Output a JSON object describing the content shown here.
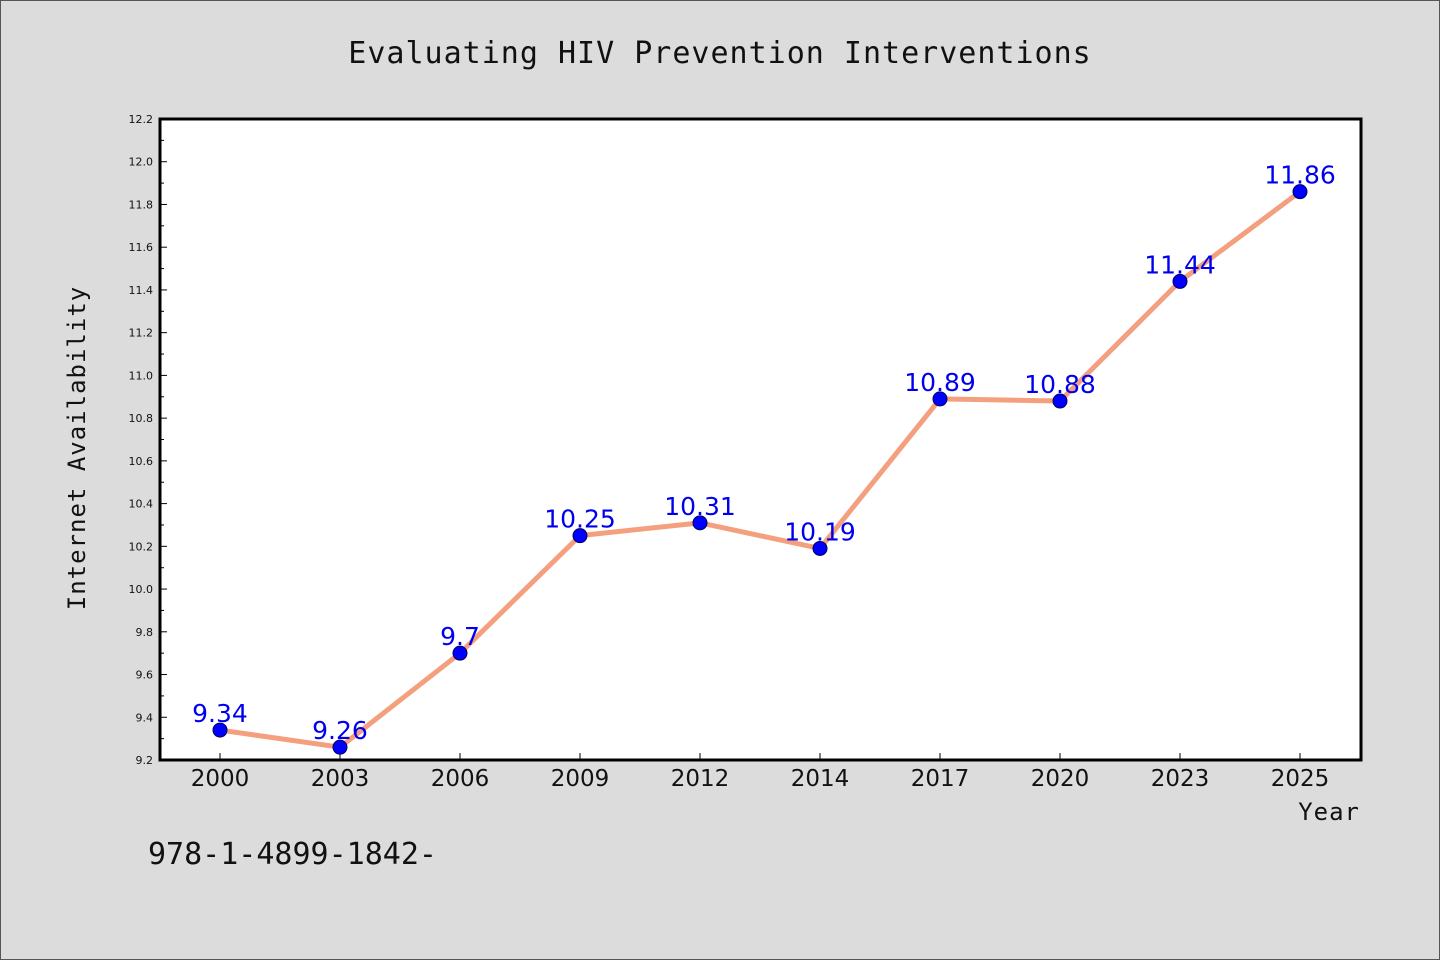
{
  "chart_data": {
    "type": "line",
    "title": "Evaluating HIV Prevention Interventions",
    "xlabel": "Year",
    "ylabel": "Internet Availability",
    "categories": [
      "2000",
      "2003",
      "2006",
      "2009",
      "2012",
      "2014",
      "2017",
      "2020",
      "2023",
      "2025"
    ],
    "series": [
      {
        "values": [
          9.34,
          9.26,
          9.7,
          10.25,
          10.31,
          10.19,
          10.89,
          10.88,
          11.44,
          11.86
        ],
        "labels": [
          "9.34",
          "9.26",
          "9.7",
          "10.25",
          "10.31",
          "10.19",
          "10.89",
          "10.88",
          "11.44",
          "11.86"
        ],
        "line_color": "#f4a07f",
        "marker_color": "#0000ff"
      }
    ],
    "ylim": [
      9.2,
      12.2
    ],
    "yticks": [
      "9.2",
      "9.4",
      "9.6",
      "9.8",
      "10.0",
      "10.2",
      "10.4",
      "10.6",
      "10.8",
      "11.0",
      "11.2",
      "11.4",
      "11.6",
      "11.8",
      "12.0",
      "12.2"
    ],
    "grid": false
  },
  "footer_text": "978-1-4899-1842-"
}
